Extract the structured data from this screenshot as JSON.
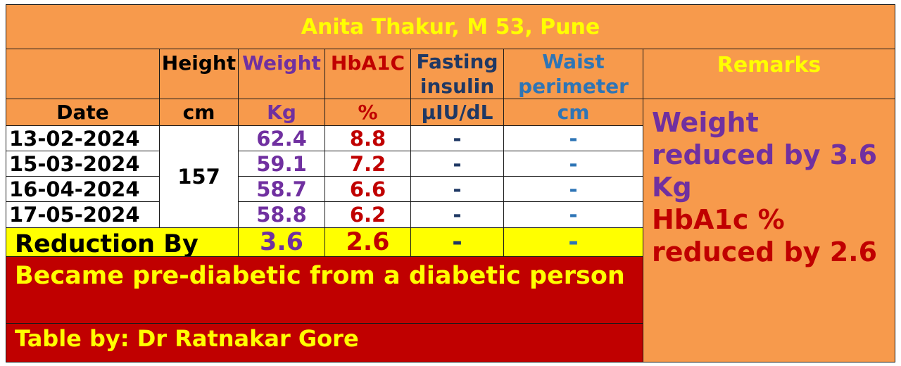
{
  "title": "Anita Thakur, M 53, Pune",
  "headers": {
    "height": "Height",
    "weight": "Weight",
    "hba1c": "HbA1C",
    "fasting_insulin": "Fasting insulin",
    "waist_perimeter": "Waist perimeter",
    "remarks": "Remarks",
    "date": "Date"
  },
  "units": {
    "height": "cm",
    "weight": "Kg",
    "hba1c": "%",
    "fasting_insulin": "µIU/dL",
    "waist_perimeter": "cm"
  },
  "height_value": "157",
  "rows": [
    {
      "date": "13-02-2024",
      "weight": "62.4",
      "hba1c": "8.8",
      "insulin": "-",
      "waist": "-"
    },
    {
      "date": "15-03-2024",
      "weight": "59.1",
      "hba1c": "7.2",
      "insulin": "-",
      "waist": "-"
    },
    {
      "date": "16-04-2024",
      "weight": "58.7",
      "hba1c": "6.6",
      "insulin": "-",
      "waist": "-"
    },
    {
      "date": "17-05-2024",
      "weight": "58.8",
      "hba1c": "6.2",
      "insulin": "-",
      "waist": "-"
    }
  ],
  "reduction": {
    "label": "Reduction By",
    "weight": "3.6",
    "hba1c": "2.6",
    "insulin": "-",
    "waist": "-"
  },
  "remarks": {
    "line1": "Weight reduced by 3.6 Kg",
    "line2": "HbA1c % reduced by 2.6"
  },
  "summary": "Became pre-diabetic from a diabetic person",
  "credit": "Table by: Dr Ratnakar Gore",
  "colors": {
    "background": "#f79a4c",
    "title": "#ffff00",
    "weight": "#7030a0",
    "hba1c": "#c00000",
    "fasting_insulin": "#1f3864",
    "waist": "#2e75b6",
    "reduction_row": "#ffff00",
    "summary_bg": "#c00000"
  }
}
